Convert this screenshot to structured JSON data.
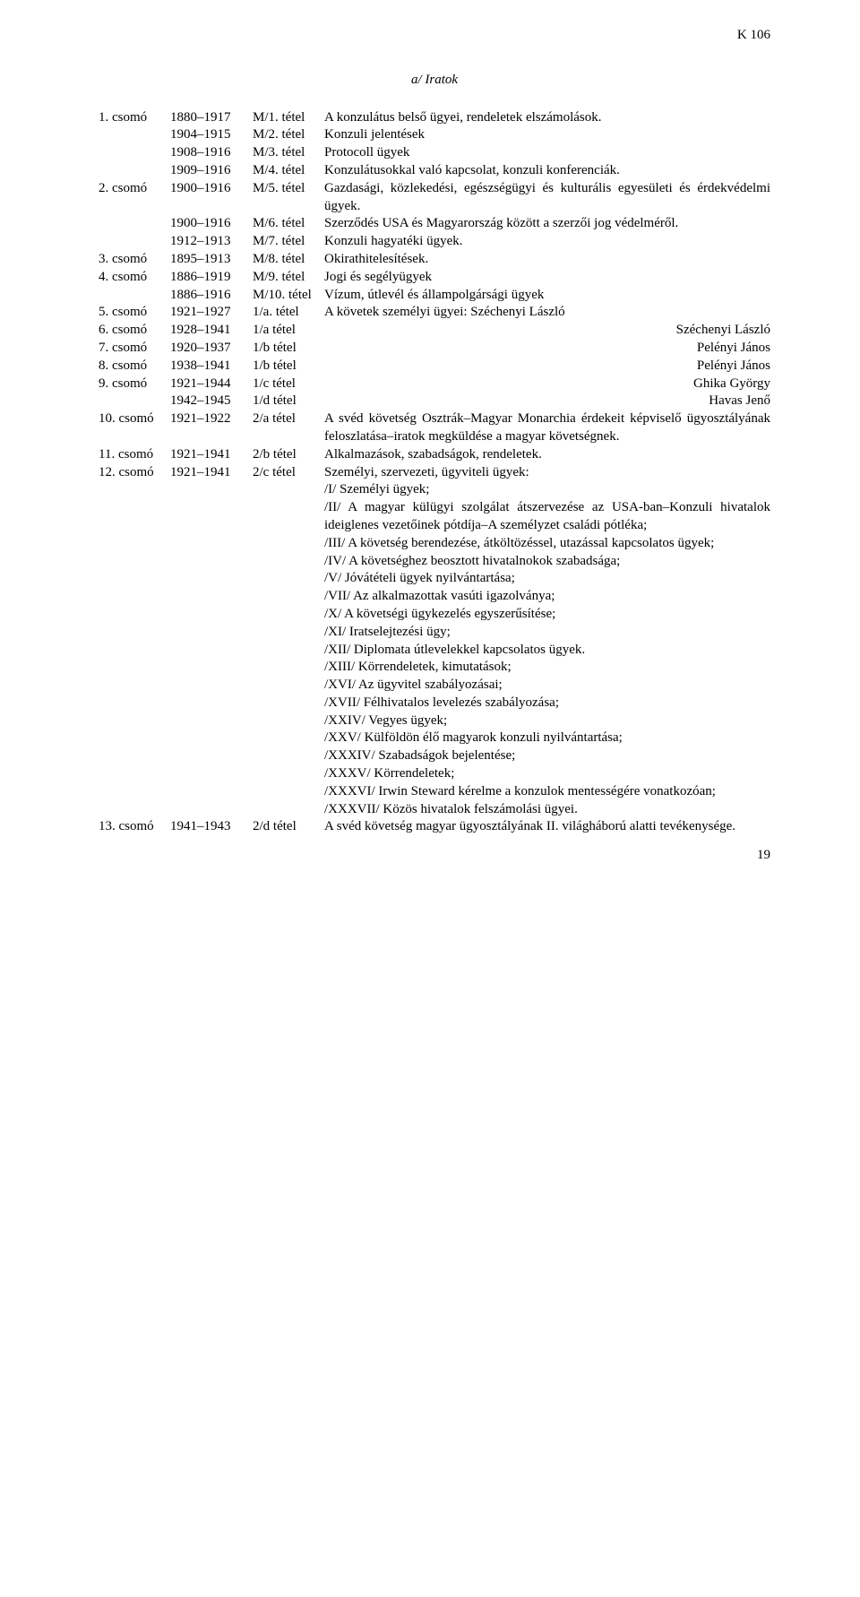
{
  "header_code": "K 106",
  "title": "a/ Iratok",
  "rows": [
    {
      "c1": "1. csomó",
      "c2": "1880–1917",
      "c3": "M/1. tétel",
      "c4": "A konzulátus belső ügyei, rendeletek elszámolások.",
      "align": "j"
    },
    {
      "c1": "",
      "c2": "1904–1915",
      "c3": "M/2. tétel",
      "c4": "Konzuli jelentések",
      "align": "l"
    },
    {
      "c1": "",
      "c2": "1908–1916",
      "c3": "M/3. tétel",
      "c4": "Protocoll ügyek",
      "align": "l"
    },
    {
      "c1": "",
      "c2": "1909–1916",
      "c3": "M/4. tétel",
      "c4": "Konzulátusokkal való kapcsolat, konzuli konferenciák.",
      "align": "j"
    },
    {
      "c1": "2. csomó",
      "c2": "1900–1916",
      "c3": "M/5. tétel",
      "c4": "Gazdasági, közlekedési, egészségügyi és kulturális egyesületi és érdekvédelmi ügyek.",
      "align": "j"
    },
    {
      "c1": "",
      "c2": "1900–1916",
      "c3": "M/6. tétel",
      "c4": "Szerződés USA és Magyarország között a szerzői jog védelméről.",
      "align": "j"
    },
    {
      "c1": "",
      "c2": "1912–1913",
      "c3": "M/7. tétel",
      "c4": "Konzuli hagyatéki ügyek.",
      "align": "l"
    },
    {
      "c1": "3. csomó",
      "c2": "1895–1913",
      "c3": "M/8. tétel",
      "c4": "Okirathitelesítések.",
      "align": "l"
    },
    {
      "c1": "4. csomó",
      "c2": "1886–1919",
      "c3": "M/9. tétel",
      "c4": "Jogi és segélyügyek",
      "align": "l"
    },
    {
      "c1": "",
      "c2": "1886–1916",
      "c3": "M/10. tétel",
      "c4": "Vízum, útlevél és állampolgársági ügyek",
      "align": "l"
    },
    {
      "c1": "5. csomó",
      "c2": "1921–1927",
      "c3": "1/a. tétel",
      "c4": "A követek személyi ügyei: Széchenyi László",
      "align": "l"
    },
    {
      "c1": "6. csomó",
      "c2": "1928–1941",
      "c3": "1/a tétel",
      "c4": "Széchenyi László",
      "align": "r"
    },
    {
      "c1": "7. csomó",
      "c2": "1920–1937",
      "c3": "1/b tétel",
      "c4": "Pelényi János",
      "align": "r"
    },
    {
      "c1": "8. csomó",
      "c2": "1938–1941",
      "c3": "1/b tétel",
      "c4": "Pelényi János",
      "align": "r"
    },
    {
      "c1": "9. csomó",
      "c2": "1921–1944",
      "c3": "1/c tétel",
      "c4": "Ghika György",
      "align": "r"
    },
    {
      "c1": "",
      "c2": "1942–1945",
      "c3": "1/d tétel",
      "c4": "Havas Jenő",
      "align": "r"
    },
    {
      "c1": "10. csomó",
      "c2": "1921–1922",
      "c3": "2/a tétel",
      "c4": "A svéd követség Osztrák–Magyar Monarchia érdekeit képviselő ügyosztályának feloszlatása–iratok megküldése a magyar követségnek.",
      "align": "j"
    },
    {
      "c1": "11. csomó",
      "c2": "1921–1941",
      "c3": "2/b tétel",
      "c4": "Alkalmazások, szabadságok, rendeletek.",
      "align": "l"
    },
    {
      "c1": "12. csomó",
      "c2": "1921–1941",
      "c3": "2/c tétel",
      "c4": "Személyi, szervezeti, ügyviteli ügyek:",
      "align": "l"
    }
  ],
  "sub12": [
    "/I/ Személyi ügyek;",
    "/II/ A magyar külügyi szolgálat átszervezése az USA-ban–Konzuli hivatalok ideiglenes vezetőinek pótdíja–A személyzet családi pótléka;",
    "/III/ A követség berendezése, átköltözéssel, utazással kapcsolatos ügyek;",
    "/IV/ A követséghez beosztott hivatalnokok szabadsága;",
    "/V/ Jóvátételi ügyek nyilvántartása;",
    "/VII/ Az alkalmazottak vasúti igazolványa;",
    "/X/ A követségi ügykezelés egyszerűsítése;",
    "/XI/ Iratselejtezési ügy;",
    "/XII/ Diplomata útlevelekkel kapcsolatos ügyek.",
    "/XIII/ Körrendeletek, kimutatások;",
    "/XVI/ Az ügyvitel szabályozásai;",
    "/XVII/ Félhivatalos levelezés szabályozása;",
    "/XXIV/ Vegyes ügyek;",
    "/XXV/ Külföldön élő magyarok konzuli nyilvántartása;",
    "/XXXIV/ Szabadságok bejelentése;",
    "/XXXV/ Körrendeletek;",
    "/XXXVI/ Irwin Steward kérelme a konzulok mentességére vonatkozóan;",
    "/XXXVII/ Közös hivatalok felszámolási ügyei."
  ],
  "row13": {
    "c1": "13. csomó",
    "c2": "1941–1943",
    "c3": "2/d tétel",
    "c4": "A svéd követség magyar ügyosztályának II. világháború alatti tevékenysége.",
    "align": "j"
  },
  "page_number": "19"
}
